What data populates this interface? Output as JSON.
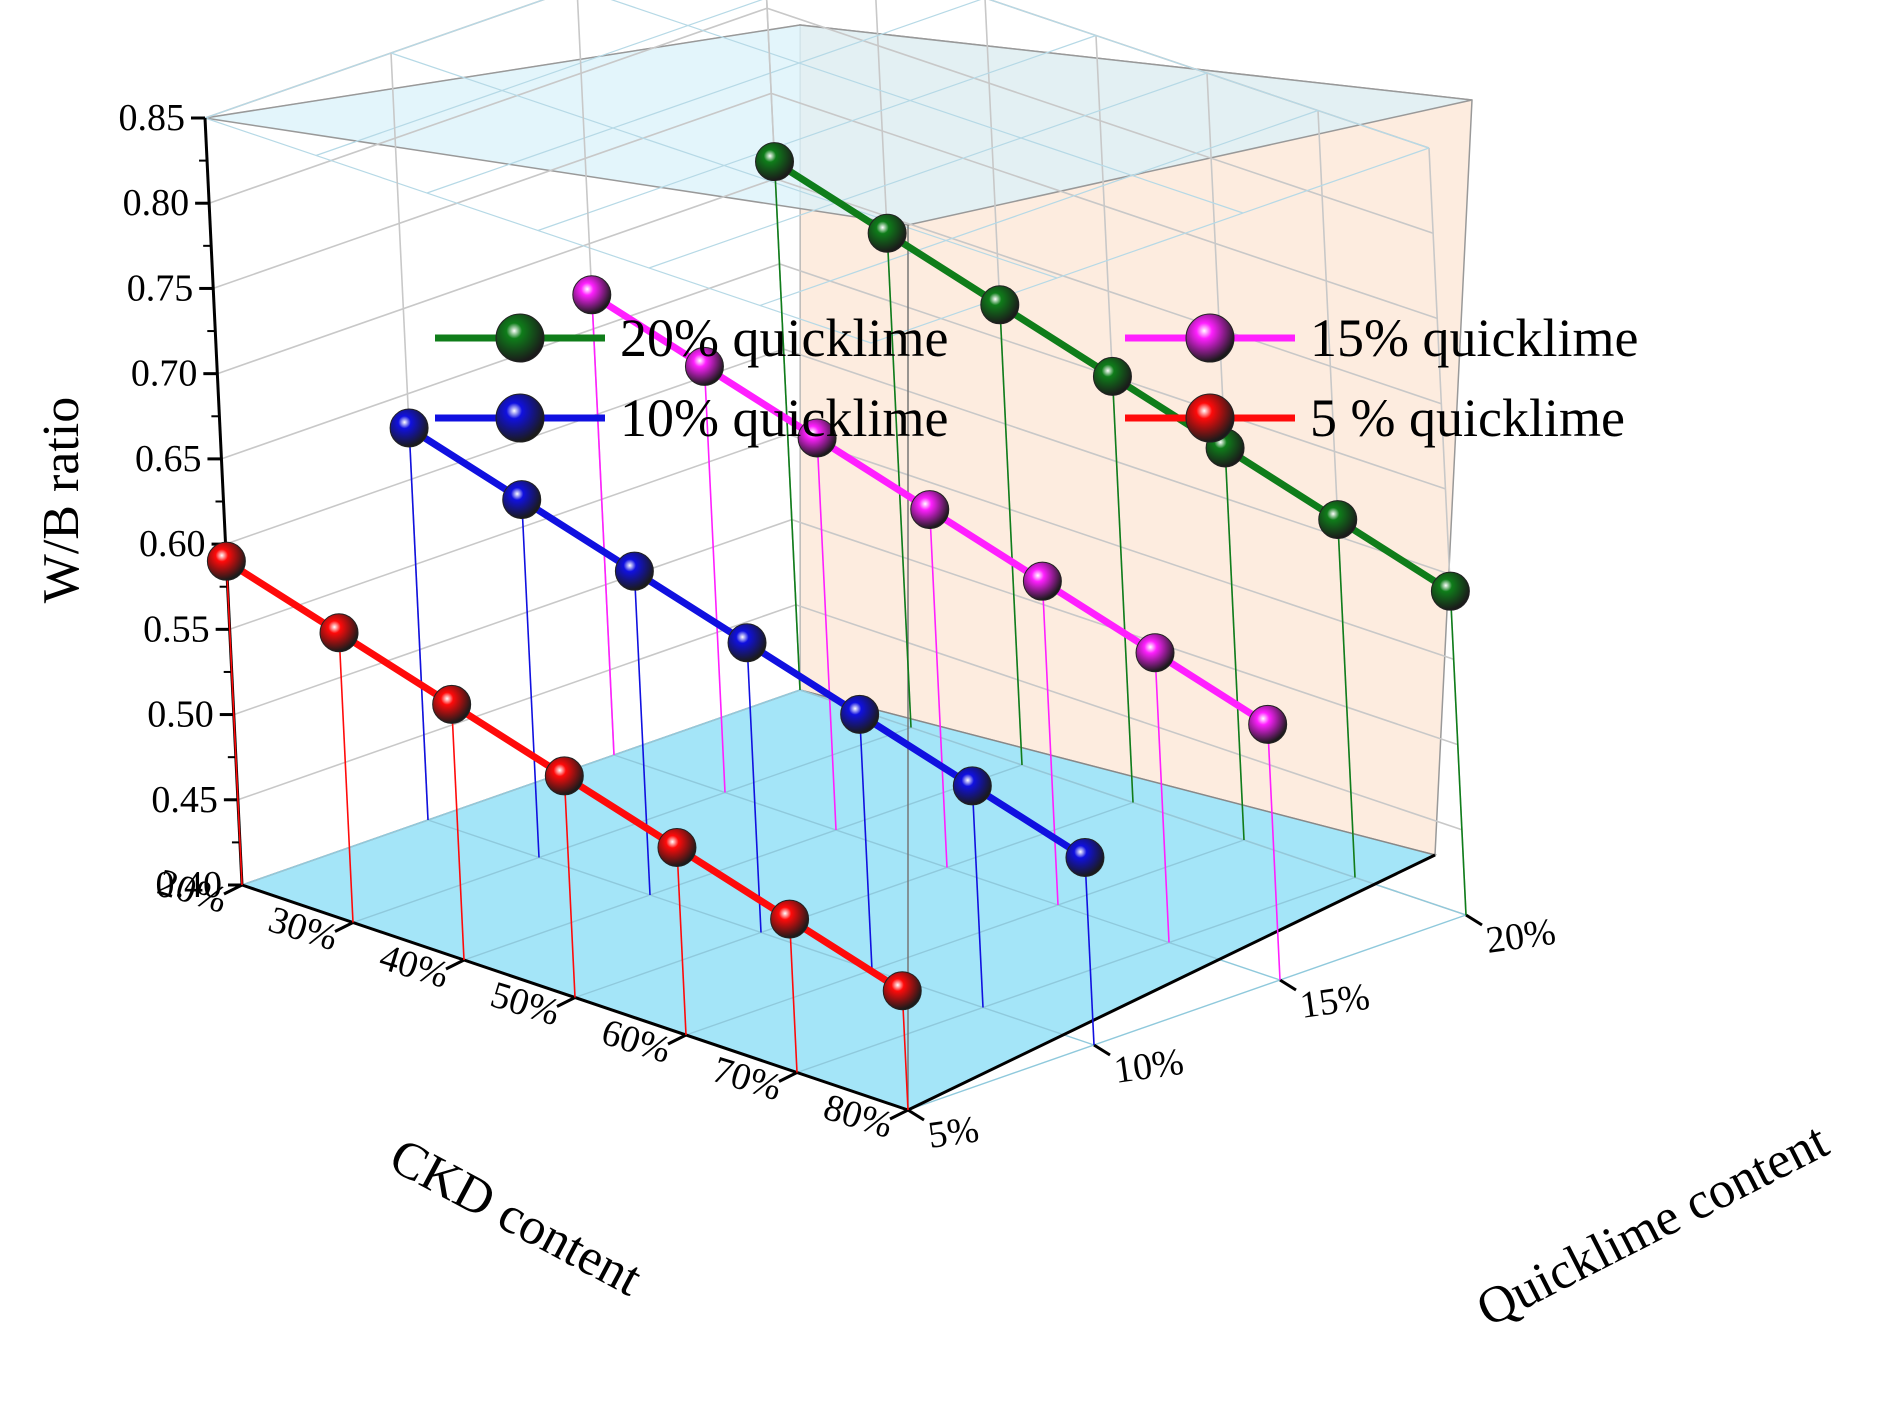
{
  "chart_data": {
    "type": "line3d",
    "title": "",
    "xlabel": "CKD content",
    "ylabel": "Quicklime content",
    "zlabel": "W/B ratio",
    "x_ticks": [
      "20%",
      "30%",
      "40%",
      "50%",
      "60%",
      "70%",
      "80%"
    ],
    "y_ticks": [
      "5%",
      "10%",
      "15%",
      "20%"
    ],
    "z_ticks": [
      "0.40",
      "0.45",
      "0.50",
      "0.55",
      "0.60",
      "0.65",
      "0.70",
      "0.75",
      "0.80",
      "0.85"
    ],
    "zlim": [
      0.4,
      0.85
    ],
    "xlim": [
      20,
      80
    ],
    "ylim": [
      5,
      20
    ],
    "x": [
      20,
      30,
      40,
      50,
      60,
      70,
      80
    ],
    "series": [
      {
        "name": "20% quicklime",
        "y": 20,
        "color": "#0f7d1a",
        "values": [
          0.71,
          0.69,
          0.67,
          0.65,
          0.63,
          0.61,
          0.59
        ]
      },
      {
        "name": "15% quicklime",
        "y": 15,
        "color": "#ff1fff",
        "values": [
          0.67,
          0.65,
          0.63,
          0.61,
          0.59,
          0.57,
          0.55
        ]
      },
      {
        "name": "10% quicklime",
        "y": 10,
        "color": "#1010e0",
        "values": [
          0.63,
          0.61,
          0.59,
          0.57,
          0.55,
          0.53,
          0.51
        ]
      },
      {
        "name": "5 % quicklime",
        "y": 5,
        "color": "#ff0a0a",
        "values": [
          0.59,
          0.57,
          0.55,
          0.53,
          0.51,
          0.49,
          0.47
        ]
      }
    ],
    "legend": {
      "position": "top",
      "entries": [
        "20% quicklime",
        "15% quicklime",
        "10% quicklime",
        "5 % quicklime"
      ]
    },
    "grid": true
  },
  "colors": {
    "floor": "#a4e5f8",
    "back_wall": "#fdecdf",
    "top": "#d9f1fa",
    "grid": "#c8c8c8"
  }
}
